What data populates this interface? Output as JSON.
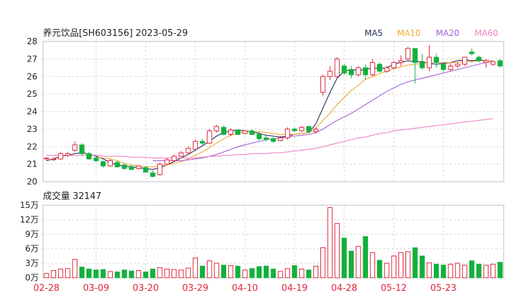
{
  "header": {
    "title": "养元饮品[SH603156] 2023-05-29",
    "legend": [
      {
        "label": "MA5",
        "color": "#1f2a5a"
      },
      {
        "label": "MA10",
        "color": "#f0a830"
      },
      {
        "label": "MA20",
        "color": "#a35fd6"
      },
      {
        "label": "MA60",
        "color": "#f080c0"
      }
    ]
  },
  "colors": {
    "up": "#e0243a",
    "down": "#12b03c",
    "grid": "#d6d6d6",
    "frame": "#bdbdbd",
    "axis_text": "#222222",
    "date_text": "#e0243a"
  },
  "volume_panel": {
    "title": "成交量 32147"
  },
  "chart_data": {
    "type": "candlestick",
    "price_axis": {
      "min": 20,
      "max": 28,
      "ticks": [
        "20",
        "21",
        "22",
        "23",
        "24",
        "25",
        "26",
        "27",
        "28"
      ]
    },
    "volume_axis": {
      "min": 0,
      "max": 150000,
      "ticks": [
        {
          "value": 0,
          "label": "0万"
        },
        {
          "value": 30000,
          "label": "3万"
        },
        {
          "value": 60000,
          "label": "6万"
        },
        {
          "value": 90000,
          "label": "9万"
        },
        {
          "value": 120000,
          "label": "12万"
        },
        {
          "value": 150000,
          "label": "15万"
        }
      ]
    },
    "x_labels": [
      {
        "index": 0,
        "label": "02-28"
      },
      {
        "index": 7,
        "label": "03-09"
      },
      {
        "index": 14,
        "label": "03-20"
      },
      {
        "index": 21,
        "label": "03-29"
      },
      {
        "index": 28,
        "label": "04-10"
      },
      {
        "index": 35,
        "label": "04-19"
      },
      {
        "index": 42,
        "label": "04-28"
      },
      {
        "index": 49,
        "label": "05-12"
      },
      {
        "index": 56,
        "label": "05-23"
      }
    ],
    "candles": [
      [
        21.3,
        21.35,
        21.2,
        21.4,
        9000
      ],
      [
        21.25,
        21.3,
        21.2,
        21.4,
        15000
      ],
      [
        21.3,
        21.6,
        21.25,
        21.7,
        18000
      ],
      [
        21.5,
        21.6,
        21.4,
        21.7,
        19000
      ],
      [
        21.8,
        22.1,
        21.7,
        22.3,
        38000
      ],
      [
        22.1,
        21.6,
        21.5,
        22.2,
        22000
      ],
      [
        21.6,
        21.3,
        21.25,
        21.7,
        18000
      ],
      [
        21.35,
        21.2,
        21.1,
        21.4,
        16000
      ],
      [
        21.15,
        20.9,
        20.8,
        21.2,
        17000
      ],
      [
        20.9,
        21.2,
        20.85,
        21.3,
        13000
      ],
      [
        21.1,
        20.85,
        20.8,
        21.2,
        12000
      ],
      [
        20.95,
        20.75,
        20.7,
        21.05,
        16000
      ],
      [
        20.85,
        20.7,
        20.65,
        20.95,
        14000
      ],
      [
        20.75,
        20.9,
        20.7,
        20.95,
        15000
      ],
      [
        20.8,
        20.55,
        20.5,
        20.9,
        12000
      ],
      [
        20.5,
        20.3,
        20.25,
        20.65,
        18000
      ],
      [
        20.4,
        21.0,
        20.35,
        21.1,
        21000
      ],
      [
        21.0,
        21.25,
        20.95,
        21.35,
        18000
      ],
      [
        21.2,
        21.45,
        21.15,
        21.55,
        17000
      ],
      [
        21.45,
        21.65,
        21.4,
        21.75,
        16000
      ],
      [
        21.65,
        21.9,
        21.6,
        22.0,
        20000
      ],
      [
        21.85,
        22.3,
        21.8,
        22.4,
        41000
      ],
      [
        22.3,
        22.2,
        22.1,
        22.45,
        24000
      ],
      [
        22.2,
        22.9,
        22.15,
        23.0,
        35000
      ],
      [
        22.9,
        23.15,
        22.8,
        23.25,
        30000
      ],
      [
        23.1,
        22.7,
        22.65,
        23.2,
        26000
      ],
      [
        22.7,
        22.95,
        22.6,
        23.05,
        25000
      ],
      [
        22.95,
        22.7,
        22.65,
        23.0,
        24000
      ],
      [
        22.75,
        22.9,
        22.7,
        22.95,
        16000
      ],
      [
        22.9,
        22.7,
        22.65,
        23.0,
        19000
      ],
      [
        22.7,
        22.45,
        22.35,
        22.85,
        23000
      ],
      [
        22.5,
        22.4,
        22.3,
        22.6,
        24000
      ],
      [
        22.45,
        22.3,
        22.2,
        22.55,
        18000
      ],
      [
        22.35,
        22.5,
        22.3,
        22.6,
        13000
      ],
      [
        22.5,
        23.0,
        22.4,
        23.1,
        19000
      ],
      [
        23.0,
        22.9,
        22.85,
        23.1,
        25000
      ],
      [
        22.9,
        23.1,
        22.85,
        23.2,
        18000
      ],
      [
        23.15,
        22.85,
        22.75,
        23.2,
        16000
      ],
      [
        22.85,
        23.0,
        22.75,
        23.1,
        24000
      ],
      [
        25.1,
        26.0,
        24.9,
        26.1,
        62000
      ],
      [
        26.0,
        26.3,
        25.8,
        26.6,
        145000
      ],
      [
        26.0,
        27.0,
        25.95,
        27.1,
        112000
      ],
      [
        26.6,
        26.2,
        26.1,
        26.7,
        82000
      ],
      [
        26.4,
        26.1,
        25.9,
        26.6,
        55000
      ],
      [
        26.1,
        26.5,
        26.0,
        26.6,
        65000
      ],
      [
        26.5,
        26.1,
        25.8,
        26.7,
        85000
      ],
      [
        26.1,
        26.8,
        26.0,
        27.0,
        52000
      ],
      [
        26.7,
        26.3,
        26.2,
        26.8,
        36000
      ],
      [
        26.3,
        26.5,
        26.2,
        26.6,
        30000
      ],
      [
        26.5,
        26.8,
        26.4,
        26.9,
        45000
      ],
      [
        26.8,
        26.9,
        26.6,
        27.2,
        52000
      ],
      [
        27.0,
        27.6,
        26.9,
        27.7,
        54000
      ],
      [
        27.6,
        26.8,
        25.6,
        27.6,
        62000
      ],
      [
        26.8,
        26.5,
        26.4,
        27.3,
        45000
      ],
      [
        26.5,
        27.1,
        26.3,
        27.8,
        31000
      ],
      [
        27.1,
        26.8,
        26.5,
        27.3,
        28000
      ],
      [
        26.7,
        26.4,
        26.3,
        26.8,
        26000
      ],
      [
        26.4,
        26.6,
        26.3,
        26.8,
        28000
      ],
      [
        26.6,
        26.7,
        26.5,
        26.8,
        30000
      ],
      [
        26.7,
        27.1,
        26.6,
        27.1,
        26000
      ],
      [
        27.4,
        27.3,
        27.2,
        27.6,
        35000
      ],
      [
        27.1,
        26.9,
        26.8,
        27.2,
        28000
      ],
      [
        26.8,
        26.9,
        26.5,
        27.0,
        26000
      ],
      [
        26.7,
        26.85,
        26.6,
        26.9,
        28000
      ],
      [
        26.9,
        26.6,
        26.5,
        27.0,
        32000
      ]
    ],
    "ma_series": [
      {
        "name": "MA5",
        "color": "#1f2a5a",
        "values": [
          21.2,
          21.3,
          21.45,
          21.5,
          21.6,
          21.65,
          21.58,
          21.45,
          21.3,
          21.1,
          20.95,
          20.9,
          20.85,
          20.8,
          20.75,
          20.7,
          20.8,
          20.95,
          21.15,
          21.35,
          21.55,
          21.8,
          22.05,
          22.3,
          22.6,
          22.8,
          22.9,
          22.95,
          22.9,
          22.85,
          22.75,
          22.65,
          22.6,
          22.55,
          22.6,
          22.7,
          22.75,
          22.8,
          23.3,
          24.2,
          25.1,
          25.9,
          26.3,
          26.4,
          26.35,
          26.4,
          26.5,
          26.45,
          26.5,
          26.7,
          26.8,
          26.9,
          26.85,
          26.85,
          26.75,
          26.7,
          26.75,
          26.8,
          26.9,
          26.95,
          26.9,
          26.95,
          26.9,
          26.9
        ]
      },
      {
        "name": "MA10",
        "color": "#f0a830",
        "values": [
          null,
          null,
          null,
          null,
          null,
          null,
          null,
          21.4,
          21.35,
          21.3,
          21.2,
          21.05,
          20.95,
          20.9,
          20.85,
          20.85,
          20.9,
          20.95,
          21.05,
          21.15,
          21.3,
          21.5,
          21.7,
          21.95,
          22.2,
          22.45,
          22.65,
          22.8,
          22.85,
          22.85,
          22.85,
          22.8,
          22.75,
          22.7,
          22.7,
          22.7,
          22.75,
          22.8,
          23.05,
          23.5,
          23.9,
          24.4,
          24.8,
          25.2,
          25.5,
          25.85,
          26.0,
          26.15,
          26.3,
          26.45,
          26.55,
          26.65,
          26.7,
          26.75,
          26.8,
          26.8,
          26.8,
          26.8,
          26.8,
          26.85,
          26.85,
          26.9,
          26.9,
          26.9
        ]
      },
      {
        "name": "MA20",
        "color": "#a35fd6",
        "values": [
          null,
          null,
          null,
          null,
          null,
          null,
          null,
          null,
          null,
          null,
          null,
          null,
          null,
          null,
          null,
          21.2,
          21.2,
          21.2,
          21.2,
          21.2,
          21.25,
          21.3,
          21.35,
          21.45,
          21.55,
          21.7,
          21.85,
          22.0,
          22.1,
          22.2,
          22.3,
          22.4,
          22.45,
          22.5,
          22.55,
          22.6,
          22.65,
          22.7,
          22.8,
          23.0,
          23.25,
          23.5,
          23.7,
          23.9,
          24.15,
          24.4,
          24.65,
          24.9,
          25.15,
          25.35,
          25.55,
          25.7,
          25.8,
          25.9,
          26.0,
          26.1,
          26.2,
          26.3,
          26.4,
          26.5,
          26.6,
          26.7,
          26.8,
          26.85
        ]
      },
      {
        "name": "MA60",
        "color": "#f080c0",
        "values": [
          21.5,
          21.5,
          21.5,
          21.5,
          21.5,
          21.5,
          21.5,
          21.5,
          21.45,
          21.45,
          21.45,
          21.45,
          21.4,
          21.4,
          21.4,
          21.35,
          21.35,
          21.35,
          21.35,
          21.35,
          21.35,
          21.35,
          21.4,
          21.45,
          21.45,
          21.5,
          21.5,
          21.55,
          21.55,
          21.6,
          21.6,
          21.6,
          21.65,
          21.65,
          21.7,
          21.75,
          21.8,
          21.85,
          21.9,
          22.0,
          22.1,
          22.2,
          22.3,
          22.4,
          22.5,
          22.55,
          22.65,
          22.75,
          22.8,
          22.9,
          22.95,
          23.0,
          23.05,
          23.1,
          23.15,
          23.2,
          23.25,
          23.3,
          23.35,
          23.4,
          23.45,
          23.5,
          23.55,
          23.6
        ]
      }
    ]
  }
}
